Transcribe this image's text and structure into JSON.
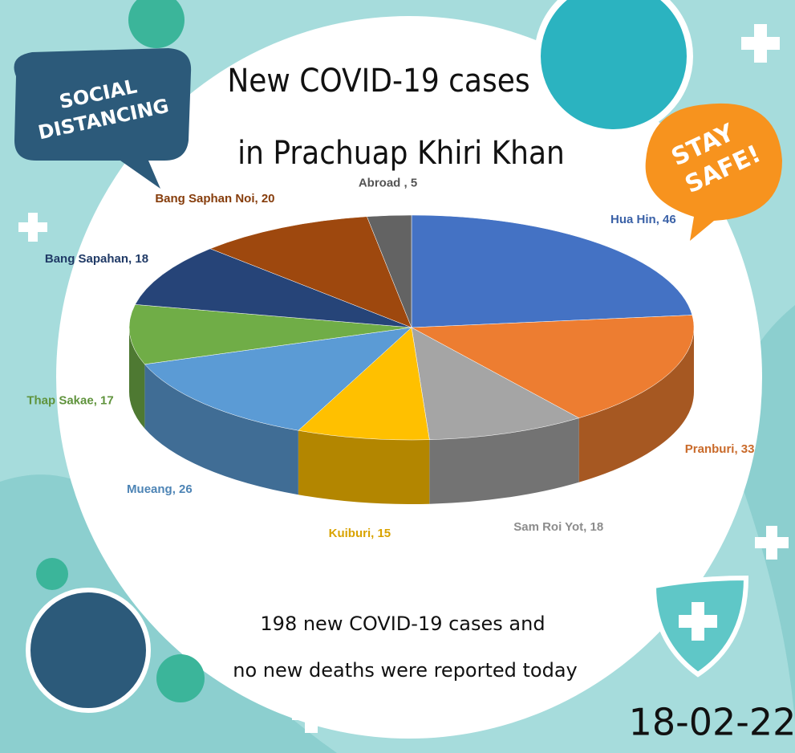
{
  "chart_data": {
    "type": "pie3d",
    "title_lines": [
      "New COVID-19 cases",
      "in Prachuap Khiri Khan"
    ],
    "values": [
      46,
      33,
      18,
      15,
      26,
      17,
      18,
      20,
      5
    ],
    "value_labels": [
      "Hua Hin, 46",
      "Pranburi, 33",
      "Sam Roi Yot, 18",
      "Kuiburi, 15",
      "Mueang, 26",
      "Thap Sakae, 17",
      "Bang Sapahan, 18",
      "Bang Saphan Noi, 20",
      "Abroad , 5"
    ],
    "colors": [
      "#4472c4",
      "#ed7d31",
      "#a5a5a5",
      "#ffc000",
      "#5b9bd5",
      "#70ad47",
      "#264478",
      "#9e480e",
      "#636363"
    ],
    "annotation_lines": [
      "198 new COVID-19 cases and",
      "no new deaths were reported today"
    ]
  },
  "decorations": {
    "bubble_left": [
      "SOCIAL",
      "DISTANCING"
    ],
    "bubble_right": [
      "STAY",
      "SAFE!"
    ],
    "date": "18-02-22"
  }
}
